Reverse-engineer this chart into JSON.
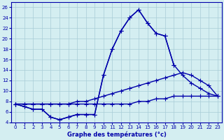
{
  "title": "Graphe des températures (°c)",
  "bg_color": "#d4eef1",
  "grid_color": "#a8ccd7",
  "line_color": "#0000aa",
  "ylim": [
    4,
    27
  ],
  "yticks": [
    4,
    6,
    8,
    10,
    12,
    14,
    16,
    18,
    20,
    22,
    24,
    26
  ],
  "xlim": [
    -0.5,
    23.5
  ],
  "xticks": [
    0,
    1,
    2,
    3,
    4,
    5,
    6,
    7,
    8,
    9,
    10,
    11,
    12,
    13,
    14,
    15,
    16,
    17,
    18,
    19,
    20,
    21,
    22,
    23
  ],
  "curve1_x": [
    0,
    1,
    2,
    3,
    4,
    5,
    6,
    7,
    8,
    9,
    10,
    11,
    12,
    13,
    14,
    15,
    16,
    17,
    18,
    19,
    20,
    21,
    22,
    23
  ],
  "curve1_y": [
    7.5,
    7,
    6.5,
    6.5,
    5,
    4.5,
    5,
    5.5,
    5.5,
    5.5,
    13,
    18,
    21.5,
    24,
    25.5,
    23,
    21,
    20.5,
    15,
    null,
    null,
    null,
    null,
    null
  ],
  "curve2_x": [
    0,
    1,
    2,
    3,
    4,
    5,
    6,
    7,
    8,
    9,
    10,
    11,
    12,
    13,
    14,
    15,
    16,
    17,
    18,
    19,
    20,
    21,
    22,
    23
  ],
  "curve2_y": [
    7.5,
    7,
    6.5,
    6.5,
    5,
    4.5,
    5,
    5.5,
    5.5,
    5.5,
    13,
    18,
    21.5,
    24,
    25.5,
    23,
    21,
    20.5,
    15,
    13,
    11.5,
    10.5,
    9.5,
    9
  ],
  "curve3_x": [
    0,
    1,
    2,
    3,
    4,
    5,
    6,
    7,
    8,
    9,
    10,
    11,
    12,
    13,
    14,
    15,
    16,
    17,
    18,
    19,
    20,
    21,
    22,
    23
  ],
  "curve3_y": [
    7.5,
    7.5,
    7.5,
    7.5,
    7.5,
    7.5,
    7.5,
    8,
    8,
    8.5,
    9,
    9.5,
    10,
    10.5,
    11,
    11.5,
    12,
    12.5,
    13,
    13.5,
    13,
    12,
    11,
    9
  ],
  "curve4_x": [
    0,
    1,
    2,
    3,
    4,
    5,
    6,
    7,
    8,
    9,
    10,
    11,
    12,
    13,
    14,
    15,
    16,
    17,
    18,
    19,
    20,
    21,
    22,
    23
  ],
  "curve4_y": [
    7.5,
    7.5,
    7.5,
    7.5,
    7.5,
    7.5,
    7.5,
    7.5,
    7.5,
    7.5,
    7.5,
    7.5,
    7.5,
    7.5,
    8,
    8,
    8.5,
    8.5,
    9,
    9,
    9,
    9,
    9,
    9
  ]
}
